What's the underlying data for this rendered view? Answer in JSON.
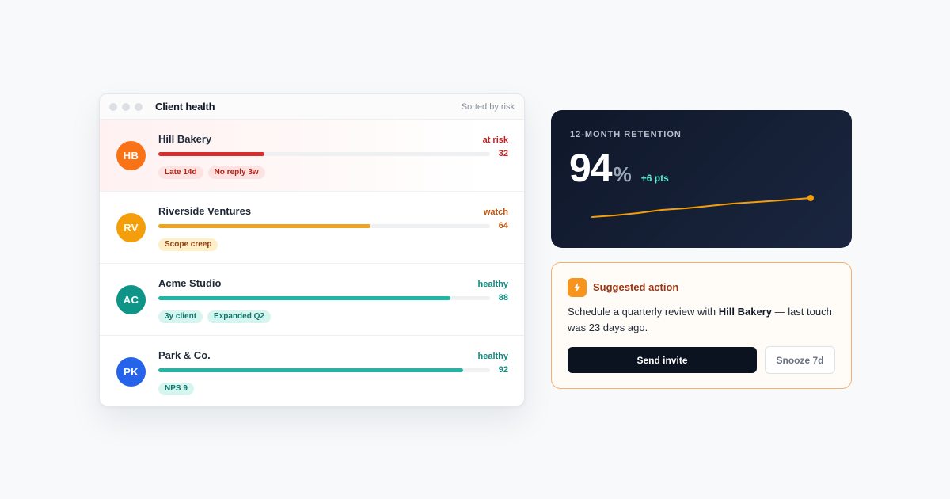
{
  "client_health": {
    "title": "Client health",
    "sort_label": "Sorted by risk",
    "clients": [
      {
        "initials": "HB",
        "name": "Hill Bakery",
        "status": "at risk",
        "score": "32",
        "score_value": 32,
        "avatar_color": "#f97316",
        "status_color": "#c81e1e",
        "bar_color": "#d92d2d",
        "highlight": true,
        "tags": [
          {
            "label": "Late 14d",
            "bg": "#fde2e2",
            "fg": "#b42318"
          },
          {
            "label": "No reply 3w",
            "bg": "#fde2e2",
            "fg": "#b42318"
          }
        ]
      },
      {
        "initials": "RV",
        "name": "Riverside Ventures",
        "status": "watch",
        "score": "64",
        "score_value": 64,
        "avatar_color": "#f59e0b",
        "status_color": "#c2540a",
        "bar_color": "#f0a31f",
        "highlight": false,
        "tags": [
          {
            "label": "Scope creep",
            "bg": "#fdefc8",
            "fg": "#92400e"
          }
        ]
      },
      {
        "initials": "AC",
        "name": "Acme Studio",
        "status": "healthy",
        "score": "88",
        "score_value": 88,
        "avatar_color": "#0f9488",
        "status_color": "#0f8a7e",
        "bar_color": "#22b5a3",
        "highlight": false,
        "tags": [
          {
            "label": "3y client",
            "bg": "#d5f5ee",
            "fg": "#0f766e"
          },
          {
            "label": "Expanded Q2",
            "bg": "#d5f5ee",
            "fg": "#0f766e"
          }
        ]
      },
      {
        "initials": "PK",
        "name": "Park & Co.",
        "status": "healthy",
        "score": "92",
        "score_value": 92,
        "avatar_color": "#2563eb",
        "status_color": "#0f8a7e",
        "bar_color": "#22b5a3",
        "highlight": false,
        "tags": [
          {
            "label": "NPS 9",
            "bg": "#d5f5ee",
            "fg": "#0f766e"
          }
        ]
      }
    ]
  },
  "retention": {
    "label": "12-MONTH RETENTION",
    "value": "94",
    "unit": "%",
    "delta": "+6 pts",
    "trend_color": "#f59e0b"
  },
  "suggested_action": {
    "title": "Suggested action",
    "body_prefix": "Schedule a quarterly review with ",
    "body_client": "Hill Bakery",
    "body_suffix": " — last touch was 23 days ago.",
    "primary_button": "Send invite",
    "secondary_button": "Snooze 7d",
    "icon": "lightning-bolt-icon"
  }
}
